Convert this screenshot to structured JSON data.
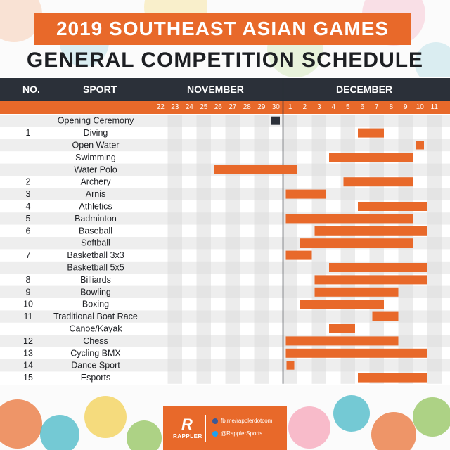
{
  "header": {
    "title": "2019 SOUTHEAST ASIAN GAMES",
    "subtitle": "GENERAL COMPETITION SCHEDULE"
  },
  "columns": {
    "no": "NO.",
    "sport": "SPORT",
    "november": "NOVEMBER",
    "december": "DECEMBER"
  },
  "colors": {
    "accent": "#e8692a",
    "dark": "#2b3039",
    "stripe": "#eeeeee",
    "grid_shade": "#dcdcdc"
  },
  "footer": {
    "brand": "RAPPLER",
    "facebook": "fb.me/rapplerdotcom",
    "twitter": "@RapplerSports",
    "facebook_icon": "facebook-icon",
    "twitter_icon": "twitter-icon",
    "logo_icon": "rappler-logo-icon"
  },
  "chart_data": {
    "type": "gantt",
    "title": "2019 SOUTHEAST ASIAN GAMES",
    "subtitle": "GENERAL COMPETITION SCHEDULE",
    "x_axis": {
      "groups": [
        {
          "label": "NOVEMBER",
          "days": [
            "22",
            "23",
            "24",
            "25",
            "26",
            "27",
            "28",
            "29",
            "30"
          ]
        },
        {
          "label": "DECEMBER",
          "days": [
            "1",
            "2",
            "3",
            "4",
            "5",
            "6",
            "7",
            "8",
            "9",
            "10",
            "11"
          ]
        }
      ]
    },
    "rows": [
      {
        "no": "",
        "sport": "Opening Ceremony",
        "start": "2019-11-30",
        "end": "2019-11-30",
        "marker": "square"
      },
      {
        "no": "1",
        "sport": "Diving",
        "start": "2019-12-06",
        "end": "2019-12-07"
      },
      {
        "no": "",
        "sport": "Open Water",
        "start": "2019-12-10",
        "end": "2019-12-10",
        "marker": "short"
      },
      {
        "no": "",
        "sport": "Swimming",
        "start": "2019-12-04",
        "end": "2019-12-09"
      },
      {
        "no": "",
        "sport": "Water Polo",
        "start": "2019-11-26",
        "end": "2019-12-01"
      },
      {
        "no": "2",
        "sport": "Archery",
        "start": "2019-12-05",
        "end": "2019-12-09"
      },
      {
        "no": "3",
        "sport": "Arnis",
        "start": "2019-12-01",
        "end": "2019-12-03"
      },
      {
        "no": "4",
        "sport": "Athletics",
        "start": "2019-12-06",
        "end": "2019-12-10"
      },
      {
        "no": "5",
        "sport": "Badminton",
        "start": "2019-12-01",
        "end": "2019-12-09"
      },
      {
        "no": "6",
        "sport": "Baseball",
        "start": "2019-12-03",
        "end": "2019-12-10"
      },
      {
        "no": "",
        "sport": "Softball",
        "start": "2019-12-02",
        "end": "2019-12-09"
      },
      {
        "no": "7",
        "sport": "Basketball 3x3",
        "start": "2019-12-01",
        "end": "2019-12-02"
      },
      {
        "no": "",
        "sport": "Basketball 5x5",
        "start": "2019-12-04",
        "end": "2019-12-10"
      },
      {
        "no": "8",
        "sport": "Billiards",
        "start": "2019-12-03",
        "end": "2019-12-10"
      },
      {
        "no": "9",
        "sport": "Bowling",
        "start": "2019-12-03",
        "end": "2019-12-08"
      },
      {
        "no": "10",
        "sport": "Boxing",
        "start": "2019-12-02",
        "end": "2019-12-07"
      },
      {
        "no": "11",
        "sport": "Traditional Boat Race",
        "start": "2019-12-07",
        "end": "2019-12-08"
      },
      {
        "no": "",
        "sport": "Canoe/Kayak",
        "start": "2019-12-04",
        "end": "2019-12-05"
      },
      {
        "no": "12",
        "sport": "Chess",
        "start": "2019-12-01",
        "end": "2019-12-08"
      },
      {
        "no": "13",
        "sport": "Cycling BMX",
        "start": "2019-12-01",
        "end": "2019-12-10"
      },
      {
        "no": "14",
        "sport": "Dance Sport",
        "start": "2019-12-01",
        "end": "2019-12-01",
        "marker": "short"
      },
      {
        "no": "15",
        "sport": "Esports",
        "start": "2019-12-06",
        "end": "2019-12-10"
      }
    ]
  }
}
